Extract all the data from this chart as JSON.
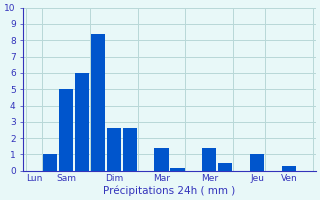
{
  "bar_values": [
    0,
    1,
    5,
    6,
    8.4,
    2.6,
    2.6,
    0,
    1.4,
    0.2,
    0,
    1.4,
    0.5,
    0,
    1.0,
    0,
    0.3,
    0
  ],
  "bar_color": "#0055cc",
  "background_color": "#e8f8f8",
  "grid_color": "#b8d8d8",
  "axis_label_color": "#3333bb",
  "tick_color": "#3333bb",
  "xlabel": "Précipitations 24h ( mm )",
  "ylim": [
    0,
    10
  ],
  "yticks": [
    0,
    1,
    2,
    3,
    4,
    5,
    6,
    7,
    8,
    9,
    10
  ],
  "day_labels": [
    "Lun",
    "Sam",
    "Dim",
    "Mar",
    "Mer",
    "Jeu",
    "Ven"
  ],
  "day_tick_positions": [
    0,
    2,
    5,
    8,
    11,
    14,
    16
  ],
  "n_bars": 18,
  "xlabel_fontsize": 7.5,
  "ytick_fontsize": 6.5,
  "xtick_fontsize": 6.5
}
